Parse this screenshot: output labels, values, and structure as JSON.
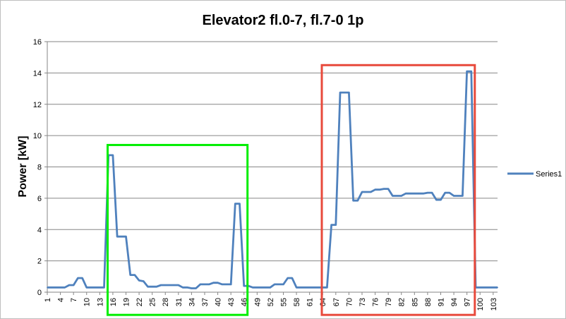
{
  "chart_data": {
    "type": "line",
    "title": "Elevator2 fl.0-7, fl.7-0 1p",
    "xlabel": "",
    "ylabel": "Power [kW]",
    "ylim": [
      0,
      16
    ],
    "yticks": [
      0,
      2,
      4,
      6,
      8,
      10,
      12,
      14,
      16
    ],
    "xlim": [
      1,
      104
    ],
    "xticks": [
      1,
      4,
      7,
      10,
      13,
      16,
      19,
      22,
      25,
      28,
      31,
      34,
      37,
      40,
      43,
      46,
      49,
      52,
      55,
      58,
      61,
      64,
      67,
      70,
      73,
      76,
      79,
      82,
      85,
      88,
      91,
      94,
      97,
      100,
      103
    ],
    "grid": true,
    "legend": "right",
    "colors": {
      "series": "#4f81bd",
      "highlight_green": "#00ee00",
      "highlight_red": "#e84a3c",
      "gridline": "#868686"
    },
    "series": [
      {
        "name": "Series1",
        "x": [
          1,
          2,
          3,
          4,
          5,
          6,
          7,
          8,
          9,
          10,
          11,
          12,
          13,
          14,
          15,
          16,
          17,
          18,
          19,
          20,
          21,
          22,
          23,
          24,
          25,
          26,
          27,
          28,
          29,
          30,
          31,
          32,
          33,
          34,
          35,
          36,
          37,
          38,
          39,
          40,
          41,
          42,
          43,
          44,
          45,
          46,
          47,
          48,
          49,
          50,
          51,
          52,
          53,
          54,
          55,
          56,
          57,
          58,
          59,
          60,
          61,
          62,
          63,
          64,
          65,
          66,
          67,
          68,
          69,
          70,
          71,
          72,
          73,
          74,
          75,
          76,
          77,
          78,
          79,
          80,
          81,
          82,
          83,
          84,
          85,
          86,
          87,
          88,
          89,
          90,
          91,
          92,
          93,
          94,
          95,
          96,
          97,
          98,
          99,
          100,
          101,
          102,
          103,
          104
        ],
        "values": [
          0.3,
          0.3,
          0.3,
          0.3,
          0.3,
          0.45,
          0.45,
          0.9,
          0.9,
          0.3,
          0.3,
          0.3,
          0.3,
          0.3,
          8.75,
          8.75,
          3.55,
          3.55,
          3.55,
          1.1,
          1.1,
          0.75,
          0.7,
          0.35,
          0.35,
          0.35,
          0.45,
          0.45,
          0.45,
          0.45,
          0.45,
          0.3,
          0.3,
          0.25,
          0.25,
          0.5,
          0.5,
          0.5,
          0.6,
          0.6,
          0.5,
          0.5,
          0.5,
          5.65,
          5.65,
          0.4,
          0.4,
          0.3,
          0.3,
          0.3,
          0.3,
          0.3,
          0.5,
          0.5,
          0.5,
          0.9,
          0.9,
          0.3,
          0.3,
          0.3,
          0.3,
          0.3,
          0.3,
          0.3,
          0.3,
          4.3,
          4.3,
          12.75,
          12.75,
          12.75,
          5.85,
          5.85,
          6.4,
          6.4,
          6.4,
          6.55,
          6.55,
          6.6,
          6.6,
          6.15,
          6.15,
          6.15,
          6.3,
          6.3,
          6.3,
          6.3,
          6.3,
          6.35,
          6.35,
          5.9,
          5.9,
          6.35,
          6.35,
          6.15,
          6.15,
          6.15,
          14.1,
          14.1,
          0.3,
          0.3,
          0.3,
          0.3,
          0.3,
          0.3
        ]
      }
    ],
    "highlights": [
      {
        "color": "green",
        "x_from": 14.8,
        "x_to": 46.8,
        "y_from": -1.45,
        "y_to": 9.4
      },
      {
        "color": "red",
        "x_from": 63.8,
        "x_to": 98.8,
        "y_from": -1.45,
        "y_to": 14.5
      }
    ]
  }
}
